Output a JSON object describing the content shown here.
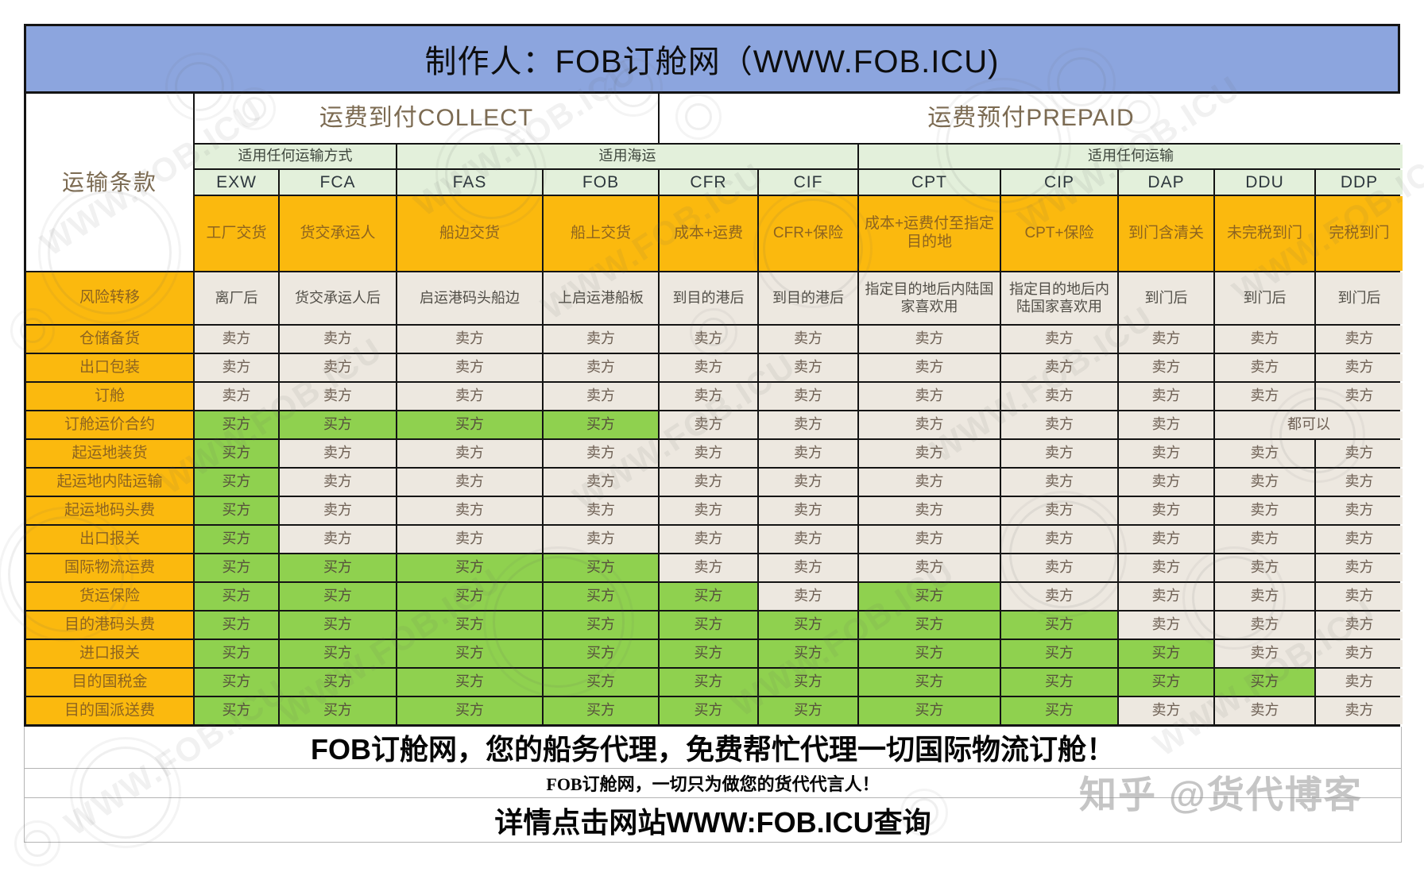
{
  "chart_data": {
    "type": "table",
    "title": "制作人：FOB订舱网（WWW.FOB.ICU)",
    "corner_label": "运输条款",
    "column_groups": [
      {
        "label": "运费到付COLLECT",
        "span": 4
      },
      {
        "label": "运费预付PREPAID",
        "span": 7
      }
    ],
    "column_scopes": [
      {
        "label": "适用任何运输方式",
        "span": 2
      },
      {
        "label": "适用海运",
        "span": 4
      },
      {
        "label": "适用任何运输",
        "span": 5
      }
    ],
    "columns": [
      "EXW",
      "FCA",
      "FAS",
      "FOB",
      "CFR",
      "CIF",
      "CPT",
      "CIP",
      "DAP",
      "DDU",
      "DDP"
    ],
    "column_descriptions": [
      "工厂交货",
      "货交承运人",
      "船边交货",
      "船上交货",
      "成本+运费",
      "CFR+保险",
      "成本+运费付至指定目的地",
      "CPT+保险",
      "到门含清关",
      "未完税到门",
      "完税到门"
    ],
    "risk_row": {
      "label": "风险转移",
      "cells": [
        "离厂后",
        "货交承运人后",
        "启运港码头船边",
        "上启运港船板",
        "到目的港后",
        "到目的港后",
        "指定目的地后内陆国家喜欢用",
        "指定目的地后内陆国家喜欢用",
        "到门后",
        "到门后",
        "到门后"
      ]
    },
    "cell_types": {
      "S": {
        "text": "卖方",
        "bg": "beige"
      },
      "B": {
        "text": "买方",
        "bg": "green"
      },
      "A": {
        "text": "都可以",
        "bg": "beige",
        "span": 2
      }
    },
    "rows": [
      {
        "label": "仓储备货",
        "pattern": "SSSSSSSSSSS"
      },
      {
        "label": "出口包装",
        "pattern": "SSSSSSSSSSS"
      },
      {
        "label": "订舱",
        "pattern": "SSSSSSSSSSS"
      },
      {
        "label": "订舱运价合约",
        "pattern": "BBBBSSSSSA"
      },
      {
        "label": "起运地装货",
        "pattern": "BSSSSSSSSSS"
      },
      {
        "label": "起运地内陆运输",
        "pattern": "BSSSSSSSSSS"
      },
      {
        "label": "起运地码头费",
        "pattern": "BSSSSSSSSSS"
      },
      {
        "label": "出口报关",
        "pattern": "BSSSSSSSSSS"
      },
      {
        "label": "国际物流运费",
        "pattern": "BBBBSSSSSSS"
      },
      {
        "label": "货运保险",
        "pattern": "BBBBBSBSSSS"
      },
      {
        "label": "目的港码头费",
        "pattern": "BBBBBBBBSSS"
      },
      {
        "label": "进口报关",
        "pattern": "BBBBBBBBBSS"
      },
      {
        "label": "目的国税金",
        "pattern": "BBBBBBBBBBS"
      },
      {
        "label": "目的国派送费",
        "pattern": "BBBBBBBBSSS"
      }
    ]
  },
  "footer": {
    "line1": "FOB订舱网，您的船务代理，免费帮忙代理一切国际物流订舱！",
    "line2": "FOB订舱网，一切只为做您的货代代言人！",
    "line3": "详情点击网站WWW:FOB.ICU查询"
  },
  "watermark": {
    "site_text": "WWW.FOB.ICU",
    "zhihu_text": "知乎 @货代博客"
  },
  "colors": {
    "title_blue": "#8CA5DE",
    "orange": "#FBB90E",
    "green": "#8FD14F",
    "beige": "#EDE8E0",
    "header_green": "#E3F0DB",
    "grid_line": "#141414"
  }
}
